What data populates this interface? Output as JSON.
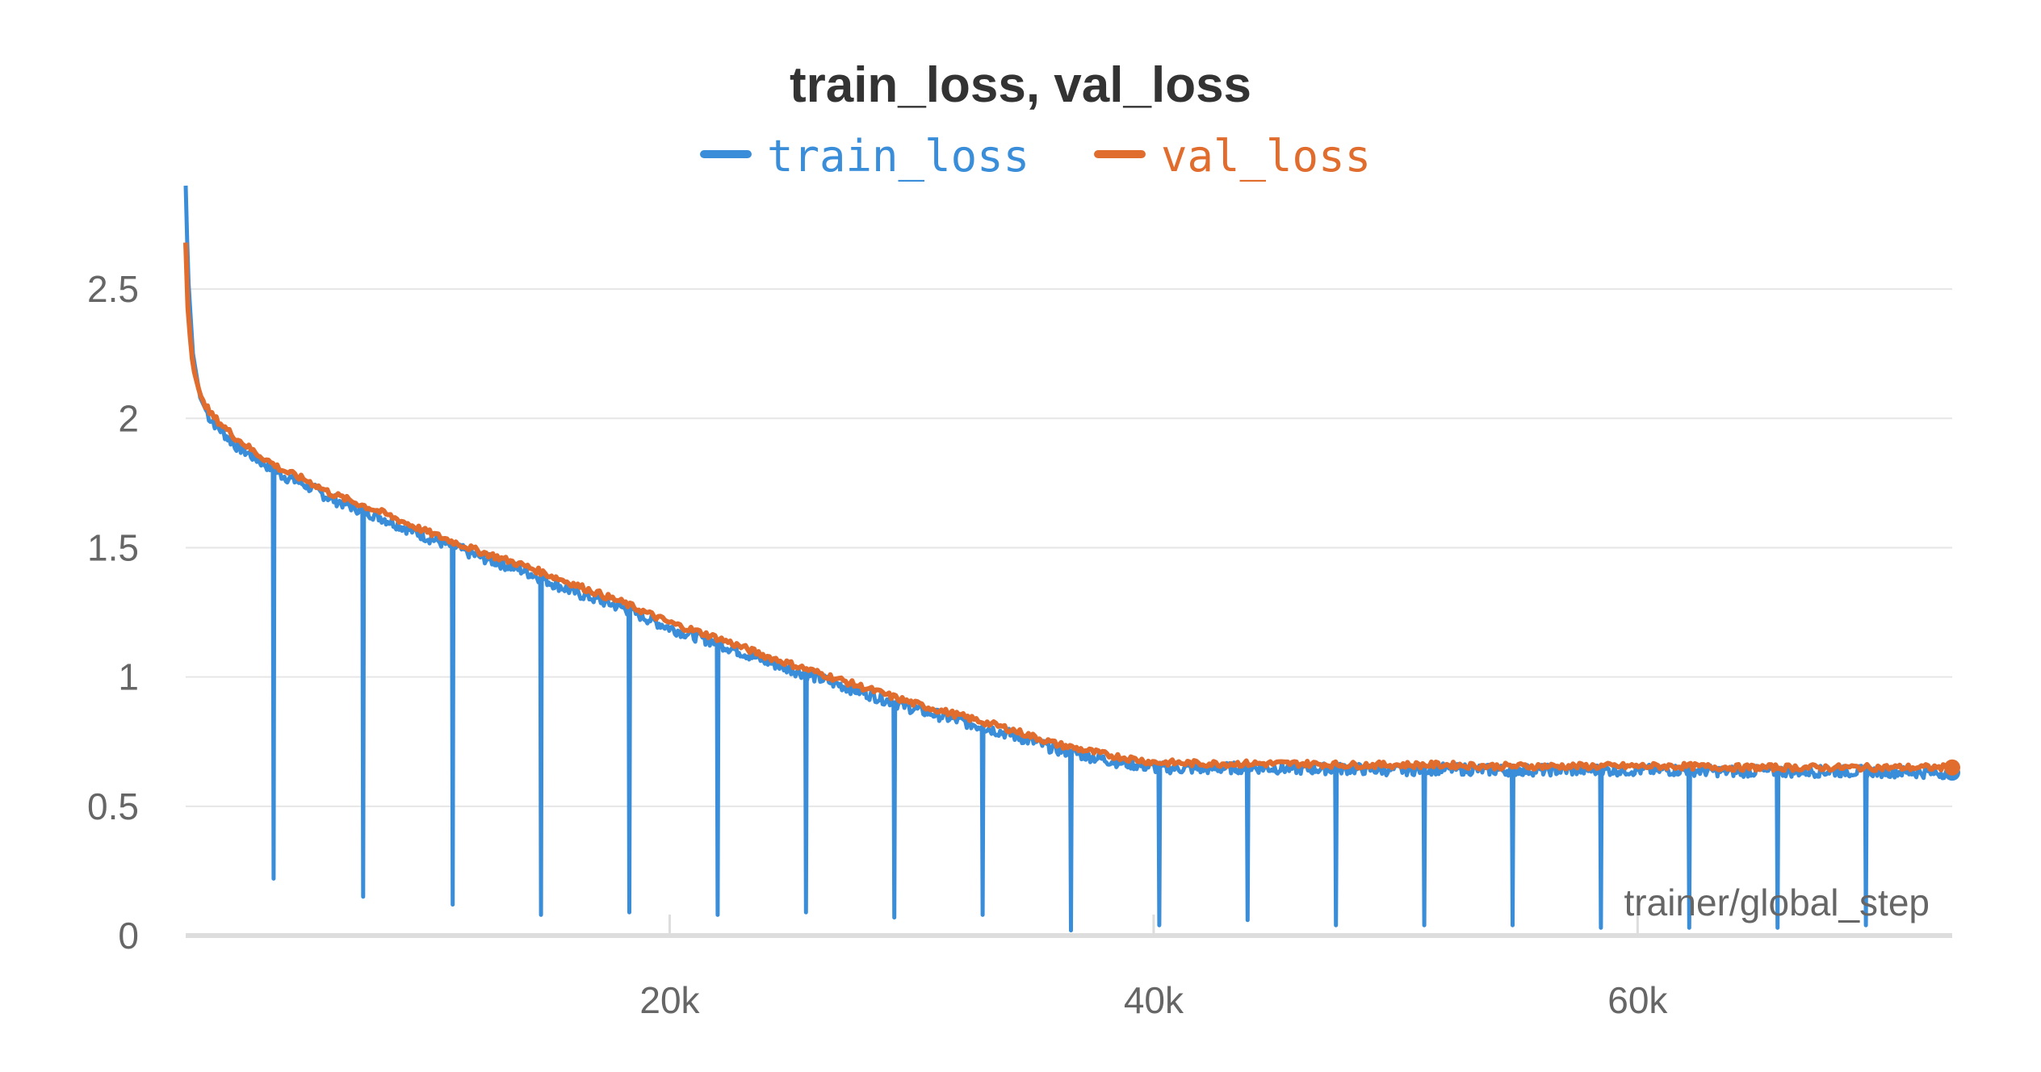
{
  "chart_data": {
    "type": "line",
    "title": "train_loss, val_loss",
    "xlabel": "trainer/global_step",
    "ylabel": "",
    "xlim": [
      0,
      73000
    ],
    "ylim": [
      0,
      2.9
    ],
    "y_ticks": [
      0,
      0.5,
      1,
      1.5,
      2,
      2.5
    ],
    "y_tick_labels": [
      "0",
      "0.5",
      "1",
      "1.5",
      "2",
      "2.5"
    ],
    "x_ticks": [
      20000,
      40000,
      60000
    ],
    "x_tick_labels": [
      "20k",
      "40k",
      "60k"
    ],
    "grid": true,
    "legend_position": "top-center",
    "series": [
      {
        "name": "train_loss",
        "color": "#3a8ed9",
        "x": [
          0,
          100,
          300,
          600,
          1000,
          2000,
          3000,
          4000,
          5000,
          6000,
          8000,
          10000,
          12000,
          14000,
          16000,
          18000,
          20000,
          22000,
          24000,
          26000,
          28000,
          30000,
          32000,
          34000,
          36000,
          38000,
          40000,
          42000,
          44000,
          46000,
          48000,
          50000,
          52000,
          54000,
          56000,
          58000,
          60000,
          62000,
          64000,
          66000,
          68000,
          70000,
          72000,
          73000
        ],
        "y": [
          2.9,
          2.55,
          2.25,
          2.08,
          2.0,
          1.9,
          1.84,
          1.78,
          1.74,
          1.69,
          1.62,
          1.54,
          1.47,
          1.41,
          1.33,
          1.27,
          1.19,
          1.13,
          1.06,
          1.0,
          0.94,
          0.88,
          0.83,
          0.78,
          0.72,
          0.68,
          0.65,
          0.645,
          0.65,
          0.645,
          0.645,
          0.64,
          0.645,
          0.64,
          0.64,
          0.64,
          0.64,
          0.64,
          0.635,
          0.635,
          0.635,
          0.635,
          0.63,
          0.63
        ],
        "dips": [
          {
            "x": 3600,
            "y": 0.22
          },
          {
            "x": 7300,
            "y": 0.15
          },
          {
            "x": 11000,
            "y": 0.12
          },
          {
            "x": 14650,
            "y": 0.08
          },
          {
            "x": 18300,
            "y": 0.09
          },
          {
            "x": 21950,
            "y": 0.08
          },
          {
            "x": 25600,
            "y": 0.09
          },
          {
            "x": 29250,
            "y": 0.07
          },
          {
            "x": 32900,
            "y": 0.08
          },
          {
            "x": 36550,
            "y": 0.02
          },
          {
            "x": 40200,
            "y": 0.04
          },
          {
            "x": 43850,
            "y": 0.06
          },
          {
            "x": 47500,
            "y": 0.04
          },
          {
            "x": 51150,
            "y": 0.04
          },
          {
            "x": 54800,
            "y": 0.04
          },
          {
            "x": 58450,
            "y": 0.03
          },
          {
            "x": 62100,
            "y": 0.03
          },
          {
            "x": 65750,
            "y": 0.03
          },
          {
            "x": 69400,
            "y": 0.04
          }
        ]
      },
      {
        "name": "val_loss",
        "color": "#e06c2e",
        "x": [
          0,
          100,
          300,
          600,
          1000,
          2000,
          3000,
          4000,
          5000,
          6000,
          8000,
          10000,
          12000,
          14000,
          16000,
          18000,
          20000,
          22000,
          24000,
          26000,
          28000,
          30000,
          32000,
          34000,
          36000,
          38000,
          40000,
          42000,
          44000,
          46000,
          48000,
          50000,
          52000,
          54000,
          56000,
          58000,
          60000,
          62000,
          64000,
          66000,
          68000,
          70000,
          72000,
          73000
        ],
        "y": [
          2.68,
          2.4,
          2.2,
          2.09,
          2.02,
          1.93,
          1.86,
          1.8,
          1.76,
          1.71,
          1.64,
          1.56,
          1.49,
          1.43,
          1.36,
          1.29,
          1.21,
          1.15,
          1.08,
          1.02,
          0.96,
          0.9,
          0.85,
          0.8,
          0.74,
          0.7,
          0.67,
          0.665,
          0.665,
          0.665,
          0.66,
          0.66,
          0.66,
          0.655,
          0.655,
          0.655,
          0.655,
          0.655,
          0.65,
          0.65,
          0.65,
          0.65,
          0.65,
          0.65
        ]
      }
    ]
  }
}
